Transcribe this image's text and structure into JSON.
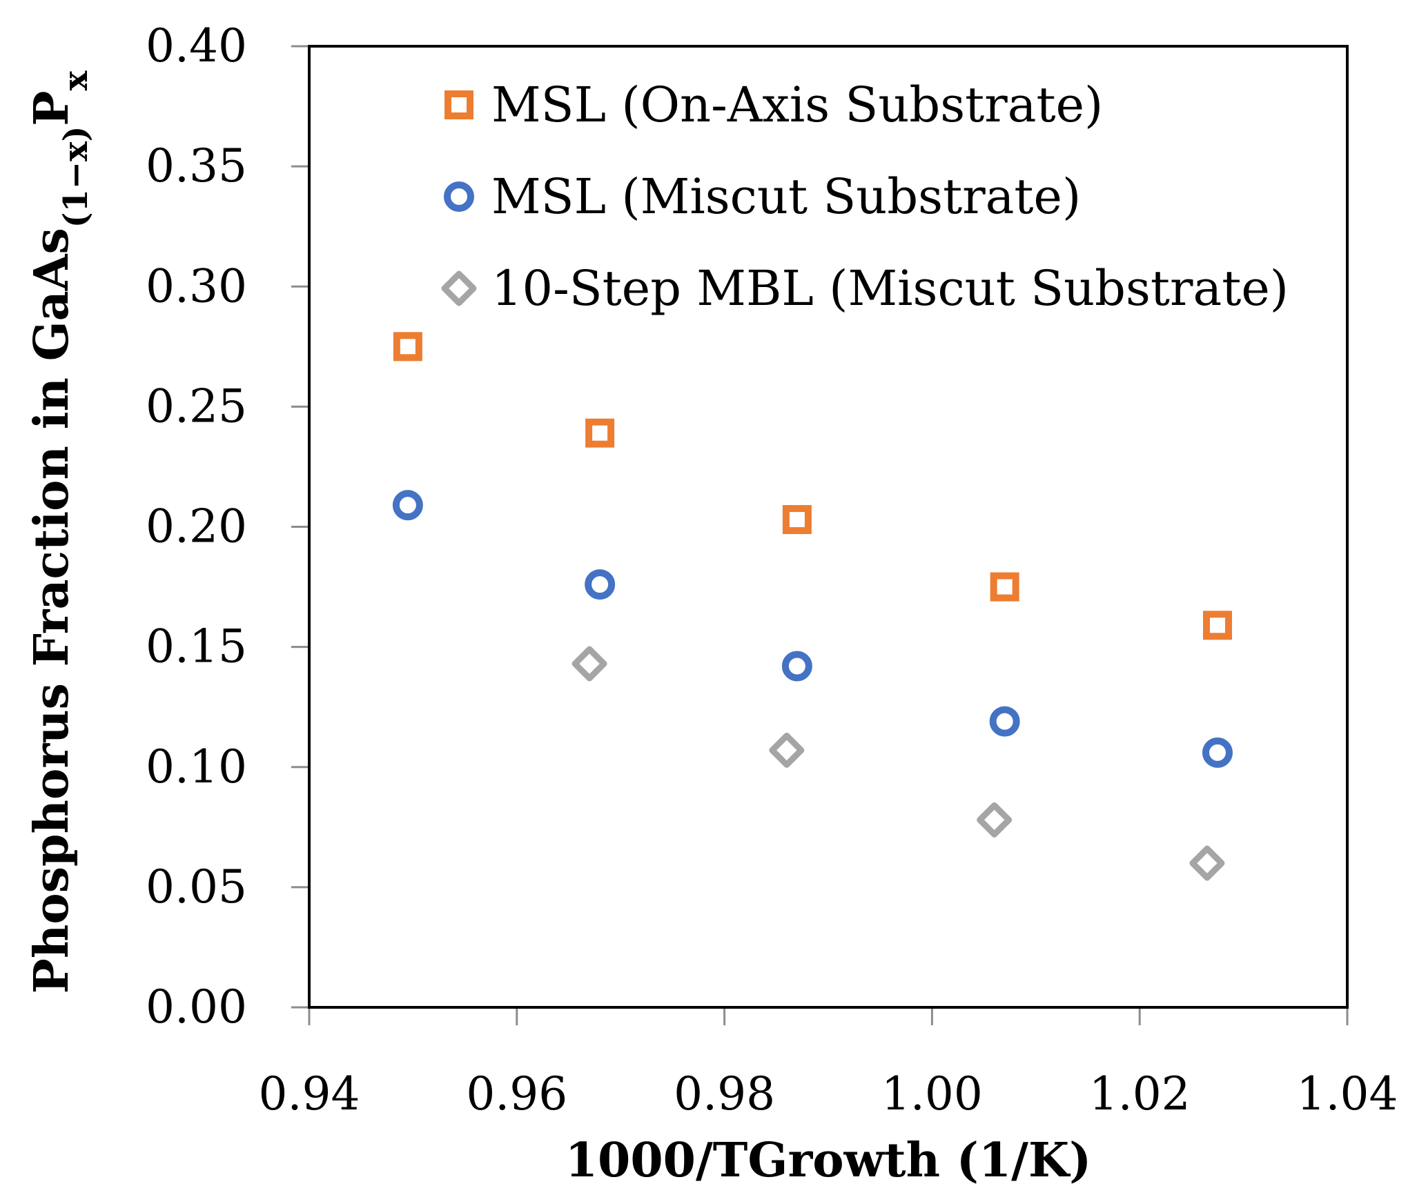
{
  "chart_data": {
    "type": "scatter",
    "xlabel": "1000/TGrowth (1/K)",
    "ylabel": {
      "main": "Phosphorus Fraction in GaAs",
      "sub": "(1−x)",
      "after": "P",
      "sub2": "x"
    },
    "xlim": [
      0.94,
      1.04
    ],
    "ylim": [
      0.0,
      0.4
    ],
    "x_ticks": [
      "0.94",
      "0.96",
      "0.98",
      "1.00",
      "1.02",
      "1.04"
    ],
    "y_ticks": [
      "0.00",
      "0.05",
      "0.10",
      "0.15",
      "0.20",
      "0.25",
      "0.30",
      "0.35",
      "0.40"
    ],
    "grid": false,
    "legend_position": "top-right",
    "series": [
      {
        "name": "MSL (On-Axis Substrate)",
        "marker": "square",
        "color": "#ED7D31",
        "points": [
          [
            0.9495,
            0.275
          ],
          [
            0.968,
            0.239
          ],
          [
            0.987,
            0.203
          ],
          [
            1.007,
            0.175
          ],
          [
            1.0275,
            0.159
          ]
        ]
      },
      {
        "name": "MSL (Miscut Substrate)",
        "marker": "circle",
        "color": "#4472C4",
        "points": [
          [
            0.9495,
            0.209
          ],
          [
            0.968,
            0.176
          ],
          [
            0.987,
            0.142
          ],
          [
            1.007,
            0.119
          ],
          [
            1.0275,
            0.106
          ]
        ]
      },
      {
        "name": "10-Step MBL (Miscut Substrate)",
        "marker": "diamond",
        "color": "#A5A5A5",
        "points": [
          [
            0.967,
            0.143
          ],
          [
            0.986,
            0.107
          ],
          [
            1.006,
            0.078
          ],
          [
            1.0265,
            0.06
          ]
        ]
      }
    ]
  }
}
